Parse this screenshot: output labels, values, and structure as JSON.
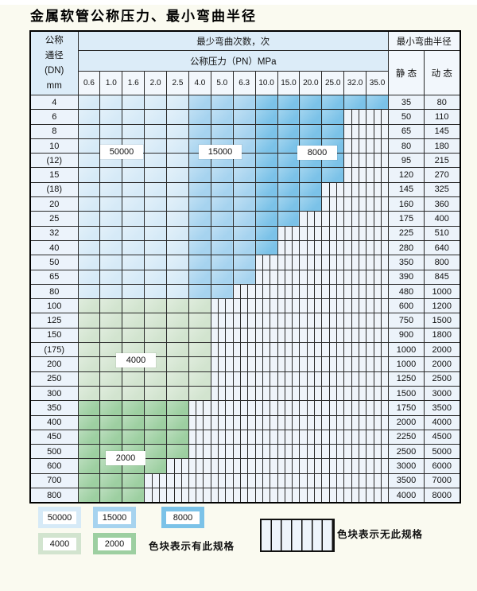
{
  "page": {
    "title": "金属软管公称压力、最小弯曲半径"
  },
  "table": {
    "header": {
      "dn_lines": [
        "公称",
        "通径",
        "(DN)",
        "mm"
      ],
      "cycles_title": "最少弯曲次数，次",
      "pressure_title": "公称压力（PN）MPa",
      "pressures": [
        "0.6",
        "1.0",
        "1.6",
        "2.0",
        "2.5",
        "4.0",
        "5.0",
        "6.3",
        "10.0",
        "15.0",
        "20.0",
        "25.0",
        "32.0",
        "35.0"
      ],
      "radius_title": "最小弯曲半径",
      "static_label": "静 态",
      "dynamic_label": "动 态"
    },
    "zone_colors": {
      "50000": "#d6eaf7",
      "15000": "#a6d3ef",
      "8000": "#7bc2e8",
      "4000": "#d2e4cf",
      "2000": "#9dcfa1"
    },
    "zones_note": {
      "blue": [
        {
          "cycles": "50000",
          "pressure_range": "0.6–2.5"
        },
        {
          "cycles": "15000",
          "pressure_range": "4.0–6.3"
        },
        {
          "cycles": "8000",
          "pressure_range": "10.0–35.0"
        }
      ],
      "green-4000": {
        "cycles": "4000"
      },
      "green-2000": {
        "cycles": "2000"
      }
    },
    "rows": [
      {
        "dn": "4",
        "zone": "blue",
        "colored_cols": 14,
        "static": "35",
        "dynamic": "80"
      },
      {
        "dn": "6",
        "zone": "blue",
        "colored_cols": 12,
        "static": "50",
        "dynamic": "110"
      },
      {
        "dn": "8",
        "zone": "blue",
        "colored_cols": 12,
        "static": "65",
        "dynamic": "145"
      },
      {
        "dn": "10",
        "zone": "blue",
        "colored_cols": 12,
        "static": "80",
        "dynamic": "180"
      },
      {
        "dn": "(12)",
        "zone": "blue",
        "colored_cols": 12,
        "static": "95",
        "dynamic": "215"
      },
      {
        "dn": "15",
        "zone": "blue",
        "colored_cols": 12,
        "static": "120",
        "dynamic": "270"
      },
      {
        "dn": "(18)",
        "zone": "blue",
        "colored_cols": 11,
        "static": "145",
        "dynamic": "325"
      },
      {
        "dn": "20",
        "zone": "blue",
        "colored_cols": 11,
        "static": "160",
        "dynamic": "360"
      },
      {
        "dn": "25",
        "zone": "blue",
        "colored_cols": 10,
        "static": "175",
        "dynamic": "400"
      },
      {
        "dn": "32",
        "zone": "blue",
        "colored_cols": 9,
        "static": "225",
        "dynamic": "510"
      },
      {
        "dn": "40",
        "zone": "blue",
        "colored_cols": 9,
        "static": "280",
        "dynamic": "640"
      },
      {
        "dn": "50",
        "zone": "blue",
        "colored_cols": 8,
        "static": "350",
        "dynamic": "800"
      },
      {
        "dn": "65",
        "zone": "blue",
        "colored_cols": 8,
        "static": "390",
        "dynamic": "845"
      },
      {
        "dn": "80",
        "zone": "blue",
        "colored_cols": 7,
        "static": "480",
        "dynamic": "1000"
      },
      {
        "dn": "100",
        "zone": "green-4000",
        "colored_cols": 6,
        "static": "600",
        "dynamic": "1200"
      },
      {
        "dn": "125",
        "zone": "green-4000",
        "colored_cols": 6,
        "static": "750",
        "dynamic": "1500"
      },
      {
        "dn": "150",
        "zone": "green-4000",
        "colored_cols": 6,
        "static": "900",
        "dynamic": "1800"
      },
      {
        "dn": "(175)",
        "zone": "green-4000",
        "colored_cols": 6,
        "static": "1000",
        "dynamic": "2000"
      },
      {
        "dn": "200",
        "zone": "green-4000",
        "colored_cols": 6,
        "static": "1000",
        "dynamic": "2000"
      },
      {
        "dn": "250",
        "zone": "green-4000",
        "colored_cols": 6,
        "static": "1250",
        "dynamic": "2500"
      },
      {
        "dn": "300",
        "zone": "green-4000",
        "colored_cols": 6,
        "static": "1500",
        "dynamic": "3000"
      },
      {
        "dn": "350",
        "zone": "green-2000",
        "colored_cols": 5,
        "static": "1750",
        "dynamic": "3500"
      },
      {
        "dn": "400",
        "zone": "green-2000",
        "colored_cols": 5,
        "static": "2000",
        "dynamic": "4000"
      },
      {
        "dn": "450",
        "zone": "green-2000",
        "colored_cols": 5,
        "static": "2250",
        "dynamic": "4500"
      },
      {
        "dn": "500",
        "zone": "green-2000",
        "colored_cols": 5,
        "static": "2500",
        "dynamic": "5000"
      },
      {
        "dn": "600",
        "zone": "green-2000",
        "colored_cols": 4,
        "static": "3000",
        "dynamic": "6000"
      },
      {
        "dn": "700",
        "zone": "green-2000",
        "colored_cols": 3,
        "static": "3500",
        "dynamic": "7000"
      },
      {
        "dn": "800",
        "zone": "green-2000",
        "colored_cols": 3,
        "static": "4000",
        "dynamic": "8000"
      }
    ]
  },
  "callouts": [
    {
      "id": "b50",
      "text": "50000"
    },
    {
      "id": "b15",
      "text": "15000"
    },
    {
      "id": "b8",
      "text": "8000"
    },
    {
      "id": "g4",
      "text": "4000"
    },
    {
      "id": "g2",
      "text": "2000"
    }
  ],
  "legend": {
    "items": [
      {
        "value": "50000",
        "color": "#d6eaf7"
      },
      {
        "value": "15000",
        "color": "#a6d3ef"
      },
      {
        "value": "8000",
        "color": "#7bc2e8"
      },
      {
        "value": "4000",
        "color": "#d2e4cf"
      },
      {
        "value": "2000",
        "color": "#9dcfa1"
      }
    ],
    "has_spec_text": "色块表示有此规格",
    "no_spec_text": "色块表示无此规格"
  }
}
